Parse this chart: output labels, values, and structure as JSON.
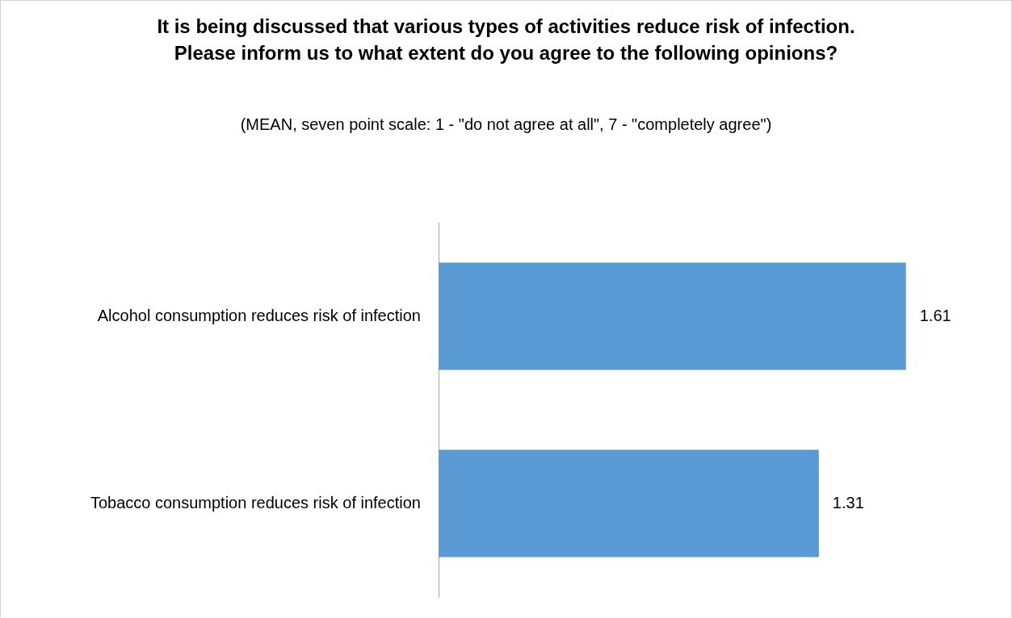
{
  "chart_data": {
    "type": "bar",
    "orientation": "horizontal",
    "title": "It is being discussed that various types of activities reduce risk of infection. Please inform us to what extent do you agree to the following opinions?",
    "subtitle": "(MEAN, seven point scale: 1 - \"do not agree at all\", 7 - \"completely agree\")",
    "categories": [
      "Alcohol consumption reduces risk of infection",
      "Tobacco consumption reduces risk of infection"
    ],
    "values": [
      1.61,
      1.31
    ],
    "color": "#5b9bd5",
    "data_labels": true,
    "tick_labels": "y"
  }
}
